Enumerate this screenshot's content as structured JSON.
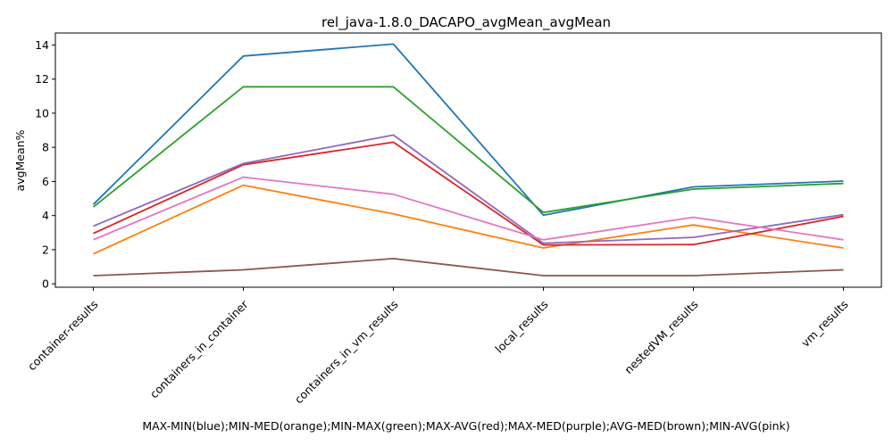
{
  "chart_data": {
    "type": "line",
    "title": "rel_java-1.8.0_DACAPO_avgMean_avgMean",
    "ylabel": "avgMean%",
    "xlabel": "MAX-MIN(blue);MIN-MED(orange);MIN-MAX(green);MAX-AVG(red);MAX-MED(purple);AVG-MED(brown);MIN-AVG(pink)",
    "categories": [
      "container-results",
      "containers_in_container",
      "containers_in_vm_results",
      "local_results",
      "nestedVM_results",
      "vm_results"
    ],
    "yticks": [
      0,
      2,
      4,
      6,
      8,
      10,
      12,
      14
    ],
    "ylim": [
      -0.2,
      14.7
    ],
    "grid": false,
    "legend": "none",
    "series": [
      {
        "color": "#1f77b4",
        "values": [
          4.65,
          13.35,
          14.05,
          4.02,
          5.68,
          6.02
        ]
      },
      {
        "color": "#ff7f0e",
        "values": [
          1.75,
          5.78,
          4.1,
          2.1,
          3.45,
          2.1
        ]
      },
      {
        "color": "#2ca02c",
        "values": [
          4.5,
          11.55,
          11.55,
          4.18,
          5.55,
          5.88
        ]
      },
      {
        "color": "#d62728",
        "values": [
          2.95,
          6.98,
          8.3,
          2.28,
          2.3,
          3.95
        ]
      },
      {
        "color": "#9467bd",
        "values": [
          3.38,
          7.05,
          8.72,
          2.38,
          2.72,
          4.05
        ]
      },
      {
        "color": "#8c564b",
        "values": [
          0.48,
          0.82,
          1.48,
          0.48,
          0.48,
          0.82
        ]
      },
      {
        "color": "#e377c2",
        "values": [
          2.58,
          6.25,
          5.25,
          2.58,
          3.9,
          2.58
        ]
      }
    ]
  }
}
